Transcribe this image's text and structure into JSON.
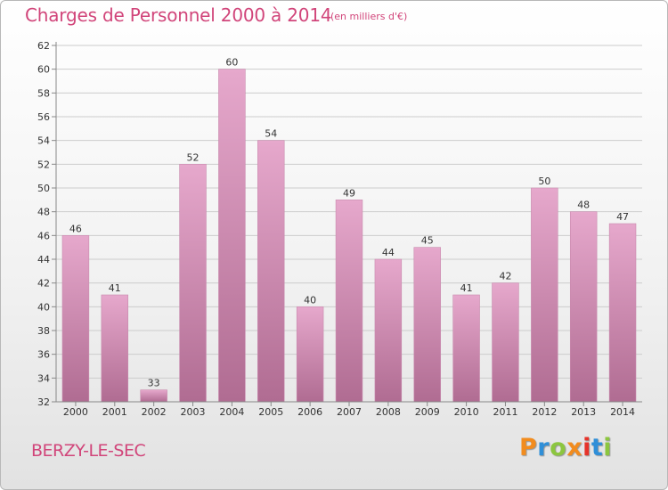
{
  "header": {
    "title": "Charges de Personnel 2000 à 2014",
    "subtitle": "(en milliers d'€)"
  },
  "footer": {
    "commune": "BERZY-LE-SEC",
    "logo_text": "Proxiti",
    "logo_colors": [
      "#f28c1e",
      "#2f8fd8",
      "#8cc63f",
      "#f28c1e",
      "#e6332a",
      "#2f8fd8",
      "#8cc63f"
    ]
  },
  "colors": {
    "text_accent": "#d1457a",
    "bar_top": "#e6a8cc",
    "bar_bottom": "#b06c92",
    "grid": "#cccccc"
  },
  "chart_data": {
    "type": "bar",
    "categories": [
      "2000",
      "2001",
      "2002",
      "2003",
      "2004",
      "2005",
      "2006",
      "2007",
      "2008",
      "2009",
      "2010",
      "2011",
      "2012",
      "2013",
      "2014"
    ],
    "values": [
      46,
      41,
      33,
      52,
      60,
      54,
      40,
      49,
      44,
      45,
      41,
      42,
      50,
      48,
      47
    ],
    "ylim": [
      32,
      62
    ],
    "yticks": [
      32,
      34,
      36,
      38,
      40,
      42,
      44,
      46,
      48,
      50,
      52,
      54,
      56,
      58,
      60,
      62
    ],
    "grid": true,
    "legend": "none"
  }
}
